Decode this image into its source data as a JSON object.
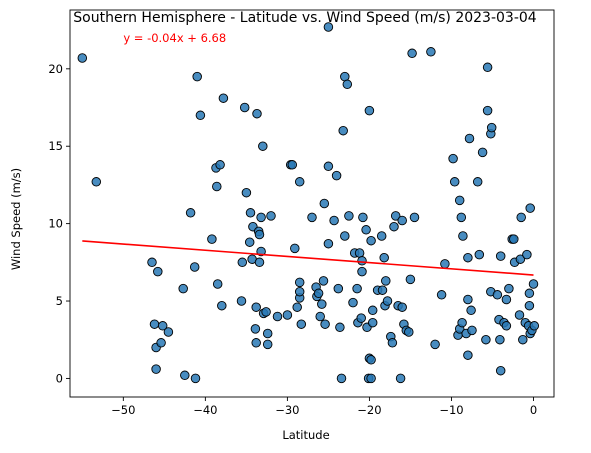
{
  "chart_data": {
    "type": "scatter",
    "title": "Southern Hemisphere - Latitude vs. Wind Speed (m/s) 2023-03-04",
    "xlabel": "Latitude",
    "ylabel": "Wind Speed (m/s)",
    "xlim": [
      -56.5,
      2.5
    ],
    "ylim": [
      -1.2,
      23.8
    ],
    "xticks": [
      -50,
      -40,
      -30,
      -20,
      -10,
      0
    ],
    "yticks": [
      0,
      5,
      10,
      15,
      20
    ],
    "grid": false,
    "point_color": "#2878b5",
    "point_edge_color": "#000000",
    "line_color": "#ff0000",
    "annotation_color": "#ff0000",
    "regression": {
      "slope": -0.04,
      "intercept": 6.68,
      "x_range": [
        -55,
        0
      ]
    },
    "annotation": {
      "text": "y = -0.04x + 6.68",
      "x": -50,
      "y": 22
    },
    "points": [
      [
        -55.0,
        20.7
      ],
      [
        -53.3,
        12.7
      ],
      [
        -46.5,
        7.5
      ],
      [
        -46.2,
        3.5
      ],
      [
        -46.0,
        0.6
      ],
      [
        -46.0,
        2.0
      ],
      [
        -45.8,
        6.9
      ],
      [
        -45.4,
        2.3
      ],
      [
        -45.2,
        3.4
      ],
      [
        -44.5,
        3.0
      ],
      [
        -42.7,
        5.8
      ],
      [
        -42.5,
        0.2
      ],
      [
        -41.8,
        10.7
      ],
      [
        -41.3,
        7.2
      ],
      [
        -41.2,
        0.0
      ],
      [
        -41.0,
        19.5
      ],
      [
        -40.6,
        17.0
      ],
      [
        -39.2,
        9.0
      ],
      [
        -38.7,
        13.6
      ],
      [
        -38.6,
        12.4
      ],
      [
        -38.5,
        6.1
      ],
      [
        -38.2,
        13.8
      ],
      [
        -38.0,
        4.7
      ],
      [
        -37.8,
        18.1
      ],
      [
        -35.6,
        5.0
      ],
      [
        -35.5,
        7.5
      ],
      [
        -35.2,
        17.5
      ],
      [
        -35.0,
        12.0
      ],
      [
        -34.6,
        8.8
      ],
      [
        -34.5,
        10.7
      ],
      [
        -34.3,
        7.7
      ],
      [
        -34.2,
        9.8
      ],
      [
        -33.9,
        3.2
      ],
      [
        -33.8,
        4.6
      ],
      [
        -33.8,
        2.3
      ],
      [
        -33.7,
        17.1
      ],
      [
        -33.5,
        9.5
      ],
      [
        -33.4,
        9.3
      ],
      [
        -33.4,
        7.5
      ],
      [
        -33.2,
        10.4
      ],
      [
        -33.2,
        8.2
      ],
      [
        -33.0,
        15.0
      ],
      [
        -32.9,
        4.2
      ],
      [
        -32.6,
        4.3
      ],
      [
        -32.4,
        2.2
      ],
      [
        -32.4,
        2.9
      ],
      [
        -32.0,
        10.5
      ],
      [
        -31.2,
        4.0
      ],
      [
        -30.0,
        4.1
      ],
      [
        -29.6,
        13.8
      ],
      [
        -29.4,
        13.8
      ],
      [
        -29.1,
        8.4
      ],
      [
        -28.8,
        4.6
      ],
      [
        -28.5,
        12.7
      ],
      [
        -28.5,
        6.2
      ],
      [
        -28.5,
        5.2
      ],
      [
        -28.3,
        3.5
      ],
      [
        -28.5,
        5.6
      ],
      [
        -27.0,
        10.4
      ],
      [
        -26.5,
        5.9
      ],
      [
        -26.4,
        5.3
      ],
      [
        -26.2,
        5.5
      ],
      [
        -26.0,
        4.0
      ],
      [
        -25.8,
        4.8
      ],
      [
        -25.6,
        6.3
      ],
      [
        -25.4,
        3.5
      ],
      [
        -25.5,
        11.3
      ],
      [
        -25.0,
        22.7
      ],
      [
        -25.0,
        13.7
      ],
      [
        -25.0,
        8.7
      ],
      [
        -24.3,
        10.2
      ],
      [
        -24.0,
        13.1
      ],
      [
        -23.8,
        5.8
      ],
      [
        -23.6,
        3.3
      ],
      [
        -23.4,
        0.0
      ],
      [
        -23.2,
        16.0
      ],
      [
        -23.0,
        19.5
      ],
      [
        -22.7,
        19.0
      ],
      [
        -23.0,
        9.2
      ],
      [
        -22.5,
        10.5
      ],
      [
        -22.0,
        4.9
      ],
      [
        -21.8,
        8.1
      ],
      [
        -21.5,
        5.8
      ],
      [
        -21.4,
        3.6
      ],
      [
        -21.2,
        8.1
      ],
      [
        -21.0,
        3.9
      ],
      [
        -20.9,
        7.6
      ],
      [
        -20.9,
        6.9
      ],
      [
        -20.8,
        10.4
      ],
      [
        -20.4,
        9.6
      ],
      [
        -20.3,
        3.3
      ],
      [
        -20.0,
        1.3
      ],
      [
        -20.1,
        0.0
      ],
      [
        -20.0,
        17.3
      ],
      [
        -19.8,
        0.0
      ],
      [
        -19.8,
        1.2
      ],
      [
        -19.8,
        8.9
      ],
      [
        -19.6,
        4.4
      ],
      [
        -19.6,
        3.6
      ],
      [
        -19.0,
        5.7
      ],
      [
        -18.5,
        9.2
      ],
      [
        -18.4,
        5.7
      ],
      [
        -18.2,
        7.8
      ],
      [
        -18.1,
        4.7
      ],
      [
        -18.0,
        6.3
      ],
      [
        -17.8,
        5.0
      ],
      [
        -17.4,
        2.7
      ],
      [
        -17.2,
        2.3
      ],
      [
        -17.0,
        9.8
      ],
      [
        -16.8,
        10.5
      ],
      [
        -16.5,
        4.7
      ],
      [
        -16.2,
        0.0
      ],
      [
        -16.0,
        10.2
      ],
      [
        -16.0,
        4.6
      ],
      [
        -15.8,
        3.5
      ],
      [
        -15.5,
        3.1
      ],
      [
        -15.2,
        3.0
      ],
      [
        -15.0,
        6.4
      ],
      [
        -14.8,
        21.0
      ],
      [
        -14.5,
        10.4
      ],
      [
        -12.5,
        21.1
      ],
      [
        -12.0,
        2.2
      ],
      [
        -11.2,
        5.4
      ],
      [
        -10.8,
        7.4
      ],
      [
        -9.8,
        14.2
      ],
      [
        -9.6,
        12.7
      ],
      [
        -9.2,
        2.8
      ],
      [
        -9.0,
        3.2
      ],
      [
        -9.0,
        11.5
      ],
      [
        -8.8,
        10.4
      ],
      [
        -8.7,
        3.6
      ],
      [
        -8.6,
        9.2
      ],
      [
        -8.2,
        2.9
      ],
      [
        -8.0,
        7.8
      ],
      [
        -8.0,
        1.5
      ],
      [
        -8.0,
        5.1
      ],
      [
        -7.8,
        15.5
      ],
      [
        -7.6,
        4.4
      ],
      [
        -7.5,
        3.1
      ],
      [
        -6.6,
        8.0
      ],
      [
        -6.8,
        12.7
      ],
      [
        -6.2,
        14.6
      ],
      [
        -5.8,
        2.5
      ],
      [
        -5.6,
        17.3
      ],
      [
        -5.6,
        20.1
      ],
      [
        -5.2,
        15.8
      ],
      [
        -5.1,
        16.2
      ],
      [
        -5.2,
        5.6
      ],
      [
        -4.4,
        5.4
      ],
      [
        -4.2,
        3.8
      ],
      [
        -4.1,
        2.5
      ],
      [
        -4.0,
        7.9
      ],
      [
        -4.0,
        0.5
      ],
      [
        -3.6,
        3.6
      ],
      [
        -3.3,
        5.1
      ],
      [
        -3.3,
        3.4
      ],
      [
        -3.0,
        5.8
      ],
      [
        -2.6,
        9.0
      ],
      [
        -2.4,
        9.0
      ],
      [
        -2.3,
        7.5
      ],
      [
        -1.7,
        4.1
      ],
      [
        -1.6,
        7.7
      ],
      [
        -1.5,
        10.4
      ],
      [
        -1.3,
        2.5
      ],
      [
        -1.0,
        3.6
      ],
      [
        -0.8,
        8.0
      ],
      [
        -0.6,
        3.4
      ],
      [
        -0.5,
        4.7
      ],
      [
        -0.5,
        5.5
      ],
      [
        -0.4,
        11.0
      ],
      [
        -0.4,
        2.9
      ],
      [
        -0.2,
        3.1
      ],
      [
        0.0,
        6.1
      ],
      [
        0.1,
        3.4
      ]
    ]
  }
}
